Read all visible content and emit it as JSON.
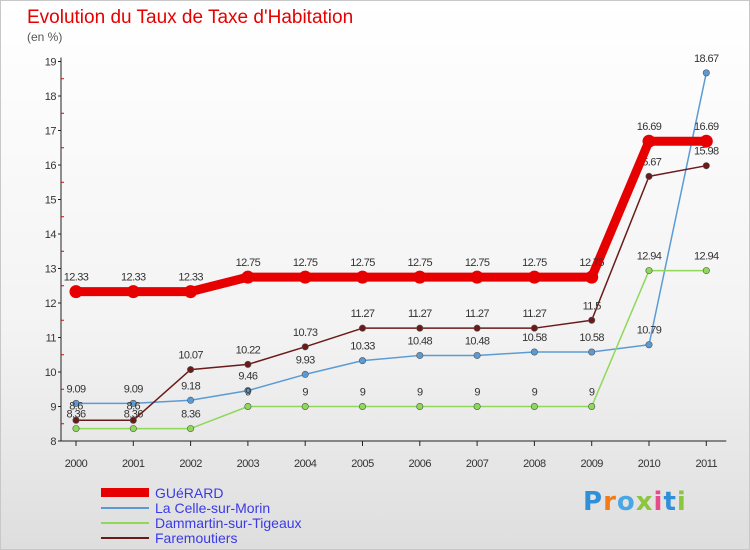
{
  "title": "Evolution du Taux de Taxe d'Habitation",
  "unit_label": "(en %)",
  "logo_text": "Proxiti",
  "chart_data": {
    "type": "line",
    "title": "Evolution du Taux de Taxe d'Habitation",
    "ylabel": "(en %)",
    "ylim": [
      8,
      19
    ],
    "yticks": [
      8,
      9,
      10,
      11,
      12,
      13,
      14,
      15,
      16,
      17,
      18,
      19
    ],
    "categories": [
      "2000",
      "2001",
      "2002",
      "2003",
      "2004",
      "2005",
      "2006",
      "2007",
      "2008",
      "2009",
      "2010",
      "2011"
    ],
    "grid": false,
    "legend": "bottom-left",
    "series": [
      {
        "name": "GUéRARD",
        "color": "#e60000",
        "values": [
          12.33,
          12.33,
          12.33,
          12.75,
          12.75,
          12.75,
          12.75,
          12.75,
          12.75,
          12.75,
          16.69,
          16.69
        ],
        "labels": [
          "12.33",
          "12.33",
          "12.33",
          "12.75",
          "12.75",
          "12.75",
          "12.75",
          "12.75",
          "12.75",
          "12.75",
          "16.69",
          "16.69"
        ]
      },
      {
        "name": "La Celle-sur-Morin",
        "color": "#5b9bd5",
        "values": [
          9.09,
          9.09,
          9.18,
          9.46,
          9.93,
          10.33,
          10.48,
          10.48,
          10.58,
          10.58,
          10.79,
          18.67
        ],
        "labels": [
          "9.09",
          "9.09",
          "9.18",
          "9.46",
          "9.93",
          "10.33",
          "10.48",
          "10.48",
          "10.58",
          "10.58",
          "10.79",
          "18.67"
        ]
      },
      {
        "name": "Dammartin-sur-Tigeaux",
        "color": "#8fd85a",
        "values": [
          8.36,
          8.36,
          8.36,
          9,
          9,
          9,
          9,
          9,
          9,
          9,
          12.94,
          12.94
        ],
        "labels": [
          "8.36",
          "8.36",
          "8.36",
          "9",
          "9",
          "9",
          "9",
          "9",
          "9",
          "9",
          "12.94",
          "12.94"
        ]
      },
      {
        "name": "Faremoutiers",
        "color": "#6b1a1a",
        "values": [
          8.6,
          8.6,
          10.07,
          10.22,
          10.73,
          11.27,
          11.27,
          11.27,
          11.27,
          11.5,
          15.67,
          15.98
        ],
        "labels": [
          "8.6",
          "8.6",
          "10.07",
          "10.22",
          "10.73",
          "11.27",
          "11.27",
          "11.27",
          "11.27",
          "11.5",
          "15.67",
          "15.98"
        ]
      }
    ]
  }
}
